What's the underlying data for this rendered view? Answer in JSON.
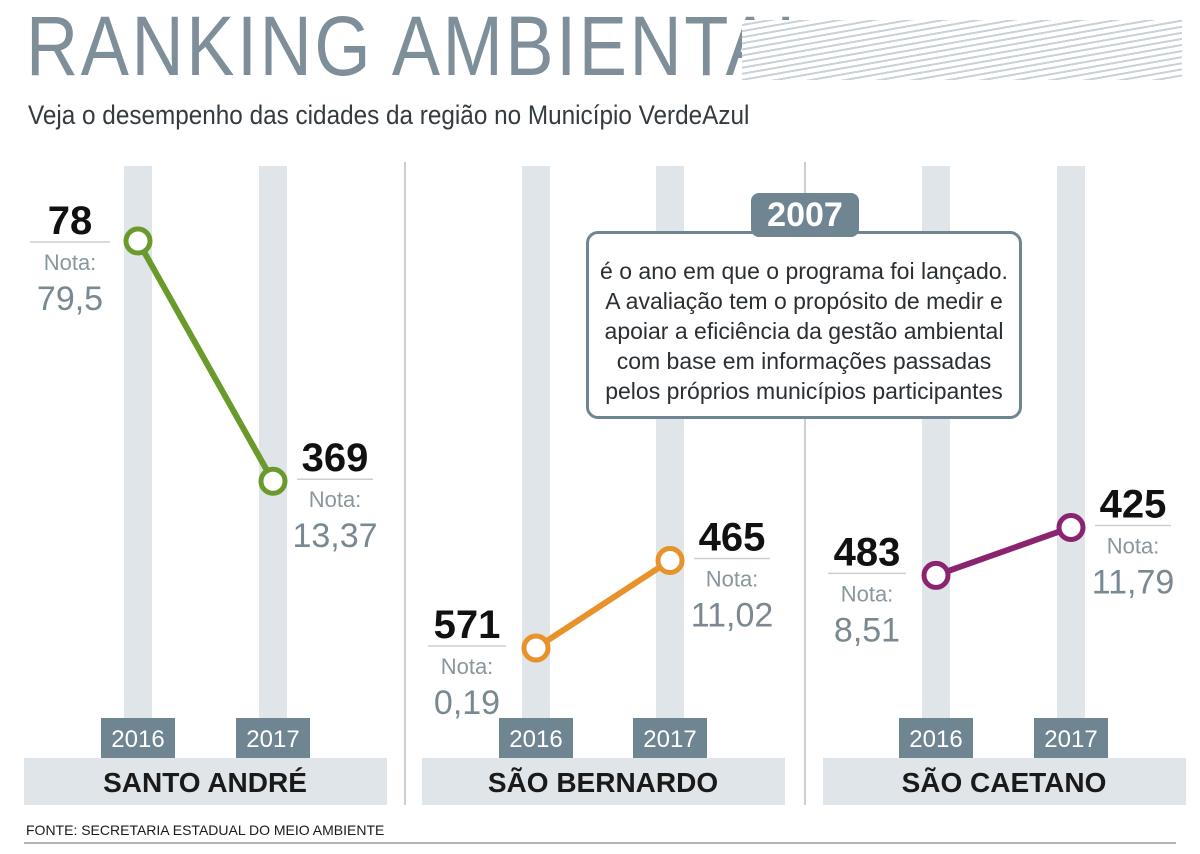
{
  "header": {
    "title": "RANKING AMBIENTAL",
    "subtitle": "Veja o desempenho das cidades da região no Município VerdeAzul"
  },
  "callout": {
    "year": "2007",
    "text": "é o ano em que o programa foi lançado. A avaliação tem o propósito de medir e apoiar a eficiência da gestão ambiental com base em informações passadas pelos próprios municípios participantes"
  },
  "source": "FONTE: SECRETARIA ESTADUAL DO MEIO AMBIENTE",
  "colors": {
    "santo_andre": "#6b9a2c",
    "sao_bernardo": "#e8922a",
    "sao_caetano": "#8a246e",
    "column": "#dfe5e8",
    "year_tag": "#6f8591"
  },
  "chart_data": {
    "type": "line",
    "note_label": "Nota:",
    "x": [
      "2016",
      "2017"
    ],
    "y_note": "ranking position (lower is better; higher points = better position)",
    "panels": [
      {
        "city": "SANTO ANDRÉ",
        "color": "#6b9a2c",
        "points": [
          {
            "year": "2016",
            "rank": 78,
            "nota": "79,5"
          },
          {
            "year": "2017",
            "rank": 369,
            "nota": "13,37"
          }
        ]
      },
      {
        "city": "SÃO BERNARDO",
        "color": "#e8922a",
        "points": [
          {
            "year": "2016",
            "rank": 571,
            "nota": "0,19"
          },
          {
            "year": "2017",
            "rank": 465,
            "nota": "11,02"
          }
        ]
      },
      {
        "city": "SÃO CAETANO",
        "color": "#8a246e",
        "points": [
          {
            "year": "2016",
            "rank": 483,
            "nota": "8,51"
          },
          {
            "year": "2017",
            "rank": 425,
            "nota": "11,79"
          }
        ]
      }
    ]
  }
}
